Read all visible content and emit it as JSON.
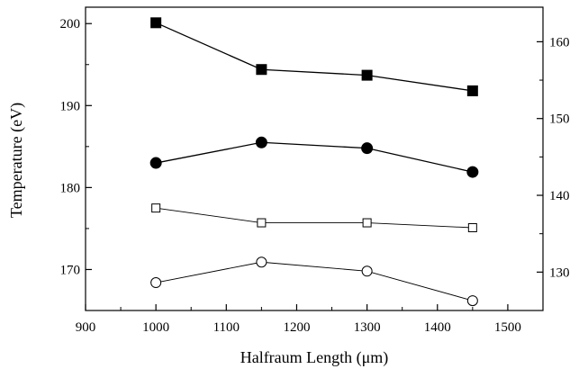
{
  "chart_data": {
    "type": "line",
    "xlabel": "Halfraum Length (μm)",
    "ylabel": "Temperature (eV)",
    "xlim": [
      900,
      1550
    ],
    "ylim": [
      165,
      202
    ],
    "ylim_right": [
      125,
      164.5
    ],
    "x_ticks": [
      "900",
      "1000",
      "1100",
      "1200",
      "1300",
      "1400",
      "1500"
    ],
    "y_ticks_left": [
      "170",
      "180",
      "190",
      "200"
    ],
    "y_ticks_right": [
      "130",
      "140",
      "150",
      "160"
    ],
    "grid": false,
    "legend": "none",
    "x": [
      1000,
      1150,
      1300,
      1450
    ],
    "series": [
      {
        "marker": "filled-square",
        "axis": "left",
        "values": [
          200.1,
          194.4,
          193.7,
          191.8
        ]
      },
      {
        "marker": "filled-circle",
        "axis": "left",
        "values": [
          183.0,
          185.5,
          184.8,
          181.9
        ]
      },
      {
        "marker": "open-square",
        "axis": "left",
        "values": [
          177.5,
          175.7,
          175.7,
          175.1
        ]
      },
      {
        "marker": "open-circle",
        "axis": "left",
        "values": [
          168.4,
          170.9,
          169.8,
          166.2
        ]
      }
    ],
    "colors": {
      "line": "#000000",
      "background": "#ffffff"
    }
  }
}
